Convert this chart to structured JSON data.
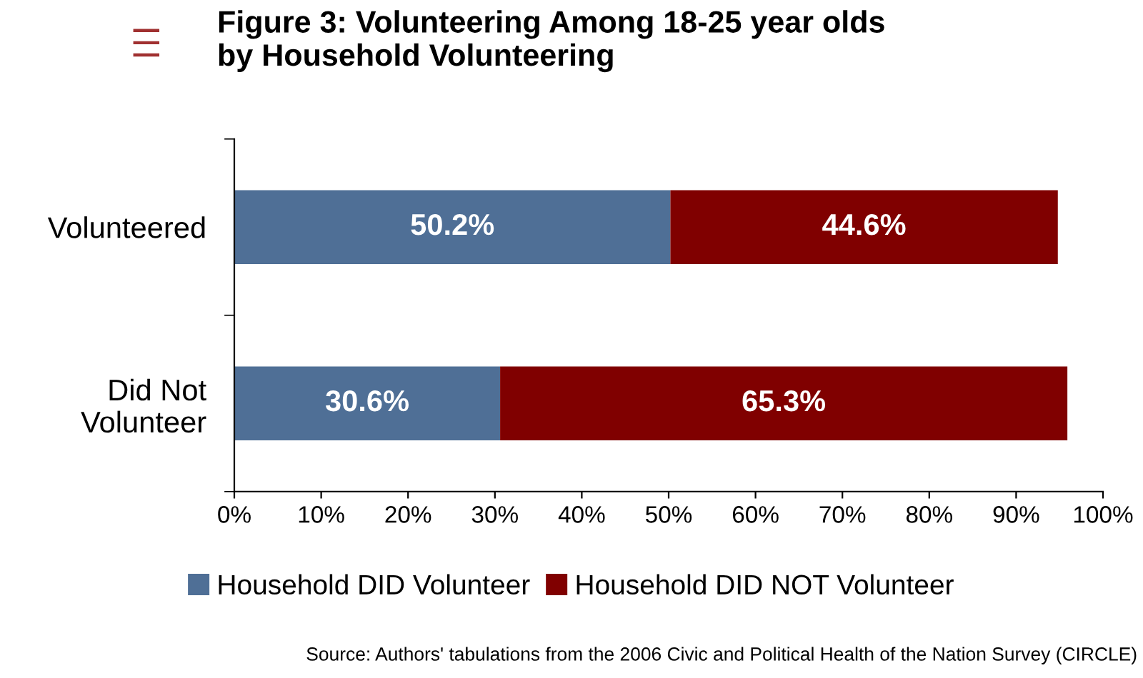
{
  "chart_data": {
    "type": "bar",
    "orientation": "horizontal",
    "stacked": true,
    "title": "Figure 3: Volunteering Among 18-25 year olds\nby Household Volunteering",
    "categories": [
      "Volunteered",
      "Did Not\nVolunteer"
    ],
    "series": [
      {
        "name": "Household DID Volunteer",
        "color": "#4f6f96",
        "values": [
          50.2,
          30.6
        ],
        "value_labels": [
          "50.2%",
          "30.6%"
        ]
      },
      {
        "name": "Household DID NOT Volunteer",
        "color": "#800000",
        "values": [
          44.6,
          65.3
        ],
        "value_labels": [
          "44.6%",
          "65.3%"
        ]
      }
    ],
    "xlim": [
      0,
      100
    ],
    "xticks": [
      {
        "value": 0,
        "label": "0%"
      },
      {
        "value": 10,
        "label": "10%"
      },
      {
        "value": 20,
        "label": "20%"
      },
      {
        "value": 30,
        "label": "30%"
      },
      {
        "value": 40,
        "label": "40%"
      },
      {
        "value": 50,
        "label": "50%"
      },
      {
        "value": 60,
        "label": "60%"
      },
      {
        "value": 70,
        "label": "70%"
      },
      {
        "value": 80,
        "label": "80%"
      },
      {
        "value": 90,
        "label": "90%"
      },
      {
        "value": 100,
        "label": "100%"
      }
    ],
    "grid": false,
    "legend": "bottom",
    "annotations": [
      "Source: Authors' tabulations from the 2006 Civic and Political Health of the Nation Survey (CIRCLE)"
    ]
  }
}
